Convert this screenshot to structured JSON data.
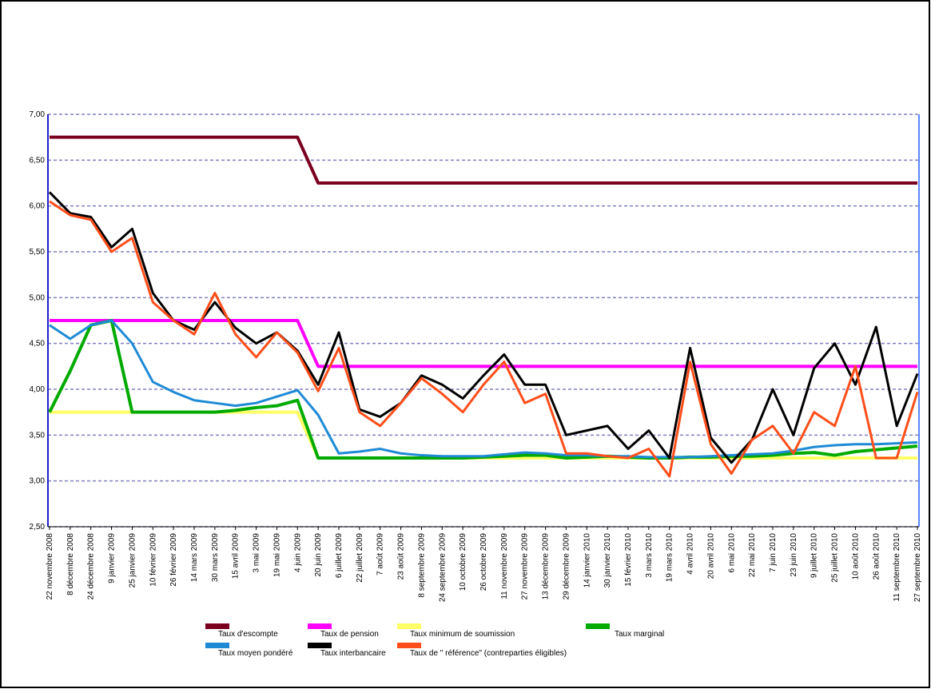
{
  "chart_data": {
    "type": "line",
    "categories": [
      "22 novembre 2008",
      "8 décembre 2008",
      "24 décembre 2008",
      "9 janvier 2009",
      "25 janvier 2009",
      "10 février 2009",
      "26 février 2009",
      "14 mars 2009",
      "30 mars 2009",
      "15 avril 2009",
      "3 mai 2009",
      "19 mai 2009",
      "4 juin 2009",
      "20 juin 2009",
      "6 juillet 2009",
      "22 juillet 2009",
      "7 août 2009",
      "23 août 2009",
      "8 septembre 2009",
      "24 septembre 2009",
      "10 octobre 2009",
      "26 octobre 2009",
      "11 novembre 2009",
      "27 novembre 2009",
      "13 décembre 2009",
      "29 décembre 2009",
      "14 janvier 2010",
      "30 janvier 2010",
      "15 février 2010",
      "3 mars 2010",
      "19 mars 2010",
      "4 avril 2010",
      "20 avril 2010",
      "6 mai 2010",
      "22 mai 2010",
      "7 juin 2010",
      "23 juin 2010",
      "9 juillet 2010",
      "25 juillet 2010",
      "10 août 2010",
      "26 août 2010",
      "11 septembre 2010",
      "27 septembre 2010"
    ],
    "ylim": [
      2.5,
      7
    ],
    "yticks": [
      {
        "value": 2.5,
        "label": "2,50"
      },
      {
        "value": 3,
        "label": "3,00"
      },
      {
        "value": 3.5,
        "label": "3,50"
      },
      {
        "value": 4,
        "label": "4,00"
      },
      {
        "value": 4.5,
        "label": "4,50"
      },
      {
        "value": 5,
        "label": "5,00"
      },
      {
        "value": 5.5,
        "label": "5,50"
      },
      {
        "value": 6,
        "label": "6,00"
      },
      {
        "value": 6.5,
        "label": "6,50"
      },
      {
        "value": 7,
        "label": "7,00"
      }
    ],
    "grid": true,
    "series": [
      {
        "name": "Taux d'escompte",
        "color": "#7b0020",
        "values": [
          6.75,
          6.75,
          6.75,
          6.75,
          6.75,
          6.75,
          6.75,
          6.75,
          6.75,
          6.75,
          6.75,
          6.75,
          6.75,
          6.25,
          6.25,
          6.25,
          6.25,
          6.25,
          6.25,
          6.25,
          6.25,
          6.25,
          6.25,
          6.25,
          6.25,
          6.25,
          6.25,
          6.25,
          6.25,
          6.25,
          6.25,
          6.25,
          6.25,
          6.25,
          6.25,
          6.25,
          6.25,
          6.25,
          6.25,
          6.25,
          6.25,
          6.25,
          6.25
        ]
      },
      {
        "name": "Taux de pension",
        "color": "#ff00ff",
        "values": [
          4.75,
          4.75,
          4.75,
          4.75,
          4.75,
          4.75,
          4.75,
          4.75,
          4.75,
          4.75,
          4.75,
          4.75,
          4.75,
          4.25,
          4.25,
          4.25,
          4.25,
          4.25,
          4.25,
          4.25,
          4.25,
          4.25,
          4.25,
          4.25,
          4.25,
          4.25,
          4.25,
          4.25,
          4.25,
          4.25,
          4.25,
          4.25,
          4.25,
          4.25,
          4.25,
          4.25,
          4.25,
          4.25,
          4.25,
          4.25,
          4.25,
          4.25,
          4.25
        ]
      },
      {
        "name": "Taux minimum de soumission",
        "color": "#ffff66",
        "values": [
          3.75,
          3.75,
          3.75,
          3.75,
          3.75,
          3.75,
          3.75,
          3.75,
          3.75,
          3.75,
          3.75,
          3.75,
          3.75,
          3.25,
          3.25,
          3.25,
          3.25,
          3.25,
          3.25,
          3.25,
          3.25,
          3.25,
          3.25,
          3.25,
          3.25,
          3.25,
          3.25,
          3.25,
          3.25,
          3.25,
          3.25,
          3.25,
          3.25,
          3.25,
          3.25,
          3.25,
          3.25,
          3.25,
          3.25,
          3.25,
          3.25,
          3.25,
          3.25
        ]
      },
      {
        "name": "Taux marginal",
        "color": "#00aa00",
        "values": [
          3.75,
          4.2,
          4.7,
          4.75,
          3.75,
          3.75,
          3.75,
          3.75,
          3.75,
          3.77,
          3.8,
          3.82,
          3.88,
          3.25,
          3.25,
          3.25,
          3.25,
          3.25,
          3.25,
          3.25,
          3.25,
          3.26,
          3.27,
          3.28,
          3.28,
          3.25,
          3.26,
          3.27,
          3.26,
          3.25,
          3.25,
          3.26,
          3.26,
          3.27,
          3.27,
          3.28,
          3.3,
          3.31,
          3.28,
          3.32,
          3.34,
          3.36,
          3.38
        ]
      },
      {
        "name": "Taux moyen pondéré",
        "color": "#1e8ad6",
        "values": [
          4.7,
          4.55,
          4.7,
          4.75,
          4.5,
          4.08,
          3.97,
          3.88,
          3.85,
          3.82,
          3.85,
          3.92,
          3.99,
          3.72,
          3.3,
          3.32,
          3.35,
          3.3,
          3.28,
          3.27,
          3.27,
          3.27,
          3.29,
          3.31,
          3.3,
          3.28,
          3.28,
          3.27,
          3.27,
          3.26,
          3.26,
          3.26,
          3.27,
          3.28,
          3.29,
          3.3,
          3.33,
          3.37,
          3.39,
          3.4,
          3.4,
          3.41,
          3.42
        ]
      },
      {
        "name": "Taux interbancaire",
        "color": "#000000",
        "values": [
          6.15,
          5.92,
          5.88,
          5.55,
          5.75,
          5.05,
          4.75,
          4.65,
          4.95,
          4.67,
          4.5,
          4.62,
          4.42,
          4.05,
          4.62,
          3.78,
          3.7,
          3.85,
          4.15,
          4.05,
          3.9,
          4.15,
          4.38,
          4.05,
          4.05,
          3.5,
          3.55,
          3.6,
          3.35,
          3.55,
          3.25,
          4.45,
          3.47,
          3.2,
          3.45,
          4.0,
          3.5,
          4.23,
          4.5,
          4.05,
          4.68,
          3.6,
          4.17
        ]
      },
      {
        "name": "Taux de \" référence\" (contreparties éligibles)",
        "color": "#ff4e1a",
        "values": [
          6.05,
          5.9,
          5.85,
          5.5,
          5.65,
          4.95,
          4.75,
          4.6,
          5.05,
          4.6,
          4.35,
          4.62,
          4.4,
          3.98,
          4.45,
          3.75,
          3.6,
          3.85,
          4.12,
          3.95,
          3.75,
          4.05,
          4.3,
          3.85,
          3.95,
          3.3,
          3.3,
          3.27,
          3.25,
          3.35,
          3.05,
          4.3,
          3.4,
          3.08,
          3.45,
          3.6,
          3.3,
          3.75,
          3.6,
          4.25,
          3.25,
          3.25,
          3.97
        ]
      }
    ]
  }
}
